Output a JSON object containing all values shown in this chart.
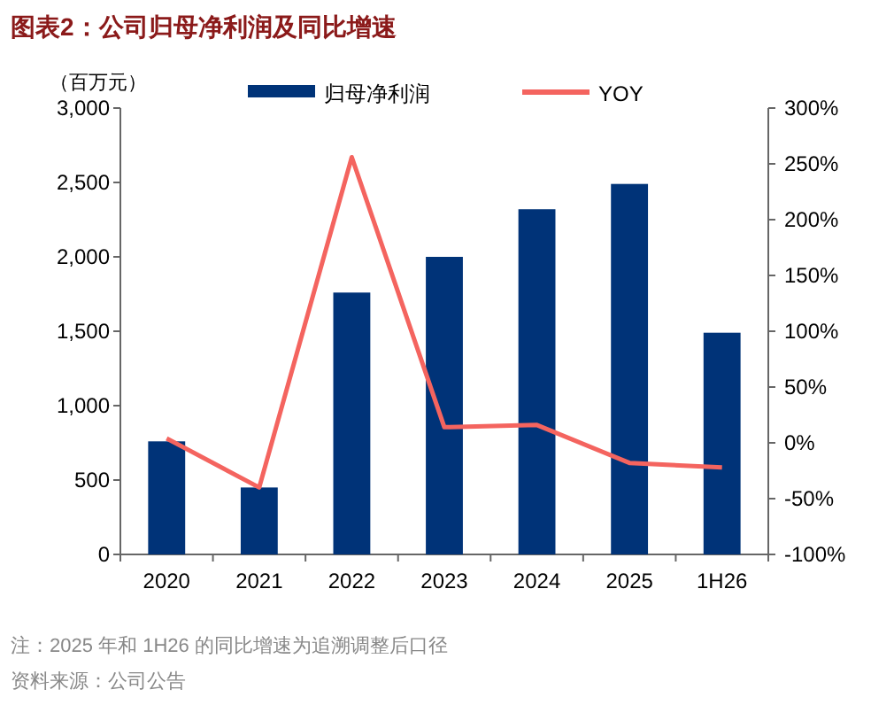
{
  "chart_data": {
    "type": "bar",
    "title": "图表2：公司归母净利润及同比增速",
    "ylabel": "（百万元）",
    "categories": [
      "2020",
      "2021",
      "2022",
      "2023",
      "2024",
      "2025",
      "1H26"
    ],
    "series": [
      {
        "name": "归母净利润",
        "color": "#003378",
        "values": [
          760,
          450,
          1760,
          2000,
          2320,
          2490,
          1490
        ]
      },
      {
        "name": "YOY",
        "type": "line",
        "axis": "y2",
        "color": "#f4645f",
        "values": [
          4,
          -40,
          256,
          14,
          16,
          -18,
          -22
        ]
      }
    ],
    "ylim": [
      0,
      3000
    ],
    "yticks": [
      0,
      500,
      {
        "value": 1000,
        "label": "1,000"
      },
      {
        "value": 1500,
        "label": "1,500"
      },
      {
        "value": 2000,
        "label": "2,000"
      },
      {
        "value": 2500,
        "label": "2,500"
      },
      {
        "value": 3000,
        "label": "3,000"
      }
    ],
    "y2lim": [
      -100,
      300
    ],
    "y2ticks": [
      {
        "value": -100,
        "label": "-100%"
      },
      {
        "value": -50,
        "label": "-50%"
      },
      {
        "value": 0,
        "label": "0%"
      },
      {
        "value": 50,
        "label": "50%"
      },
      {
        "value": 100,
        "label": "100%"
      },
      {
        "value": 150,
        "label": "150%"
      },
      {
        "value": 200,
        "label": "200%"
      },
      {
        "value": 250,
        "label": "250%"
      },
      {
        "value": 300,
        "label": "300%"
      }
    ],
    "legend": "top",
    "grid": false,
    "annotations": [
      "注：2025 年和 1H26 的同比增速为追溯调整后口径",
      "资料来源：公司公告"
    ]
  }
}
